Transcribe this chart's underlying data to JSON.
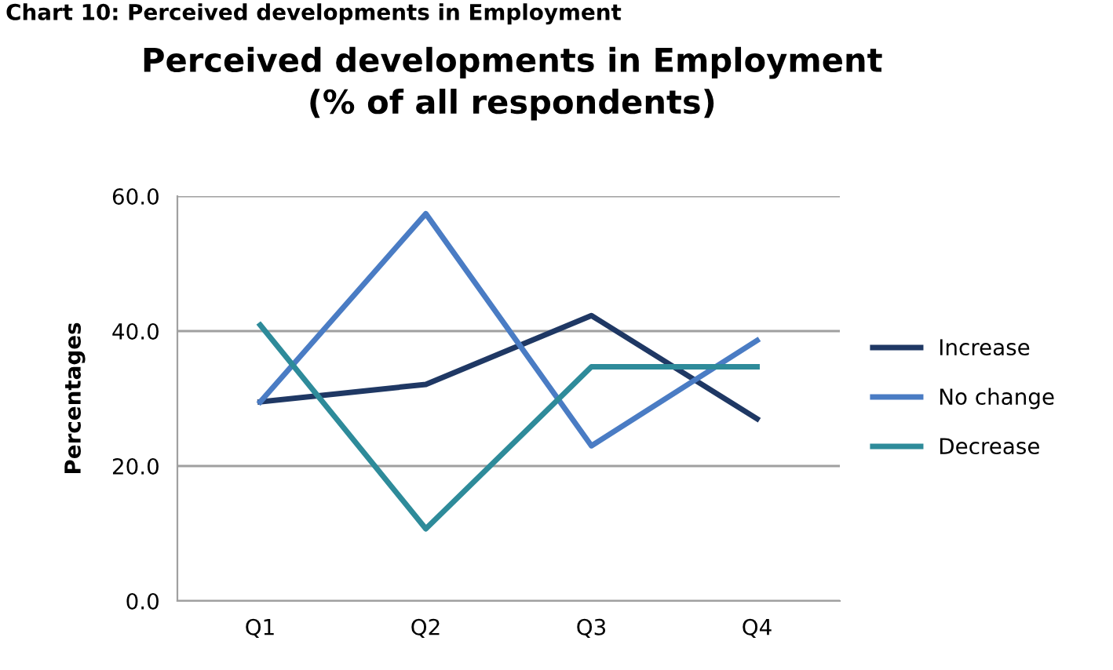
{
  "chart_data": {
    "type": "line",
    "title": "Perceived developments in Employment\n(% of all respondents)",
    "ylabel": "Percentages",
    "annotations": [
      "Chart 10: Perceived developments in Employment"
    ],
    "categories": [
      "Q1",
      "Q2",
      "Q3",
      "Q4"
    ],
    "series": [
      {
        "name": "Increase",
        "color": "#1f3864",
        "values": [
          29.5,
          32.1,
          42.3,
          27.0
        ]
      },
      {
        "name": "No change",
        "color": "#4a7cc4",
        "values": [
          29.5,
          57.4,
          23.0,
          38.6
        ]
      },
      {
        "name": "Decrease",
        "color": "#2e8b9a",
        "values": [
          40.9,
          10.7,
          34.7,
          34.7
        ]
      }
    ],
    "ylim": [
      0,
      60
    ],
    "yticks": [
      {
        "value": 0,
        "label": "0.0"
      },
      {
        "value": 20,
        "label": "20.0"
      },
      {
        "value": 40,
        "label": "40.0"
      },
      {
        "value": 60,
        "label": "60.0"
      }
    ],
    "grid": "y",
    "legend": "right",
    "marker": "none",
    "line_style": "solid"
  }
}
